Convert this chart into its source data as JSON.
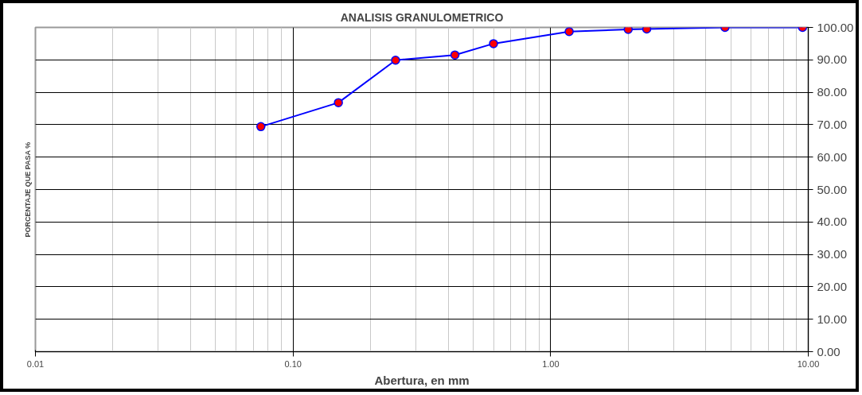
{
  "chart_data": {
    "type": "line",
    "title": "ANALISIS GRANULOMETRICO",
    "xlabel": "Abertura, en mm",
    "ylabel": "PORCENTAJE QUE PASA %",
    "x": [
      0.075,
      0.15,
      0.25,
      0.425,
      0.6,
      1.18,
      2.0,
      2.36,
      4.75,
      9.5
    ],
    "series": [
      {
        "color": "#0000ff",
        "values": [
          69.4,
          76.8,
          89.9,
          91.5,
          95.0,
          98.7,
          99.4,
          99.5,
          100.0,
          100.0
        ]
      }
    ],
    "log": "x",
    "xlim": [
      0.01,
      10
    ],
    "ylim": [
      0,
      100
    ],
    "xticks": [
      {
        "value": 0.01,
        "label": "0.01"
      },
      {
        "value": 0.1,
        "label": "0.10"
      },
      {
        "value": 1,
        "label": "1.00"
      },
      {
        "value": 10,
        "label": "10.00"
      }
    ],
    "yticks": [
      {
        "value": 0,
        "label": "0.00"
      },
      {
        "value": 10,
        "label": "10.00"
      },
      {
        "value": 20,
        "label": "20.00"
      },
      {
        "value": 30,
        "label": "30.00"
      },
      {
        "value": 40,
        "label": "40.00"
      },
      {
        "value": 50,
        "label": "50.00"
      },
      {
        "value": 60,
        "label": "60.00"
      },
      {
        "value": 70,
        "label": "70.00"
      },
      {
        "value": 80,
        "label": "80.00"
      },
      {
        "value": 90,
        "label": "90.00"
      },
      {
        "value": 100,
        "label": "100.00"
      }
    ],
    "grid": true,
    "marker": "circle",
    "line_style": "solid"
  }
}
